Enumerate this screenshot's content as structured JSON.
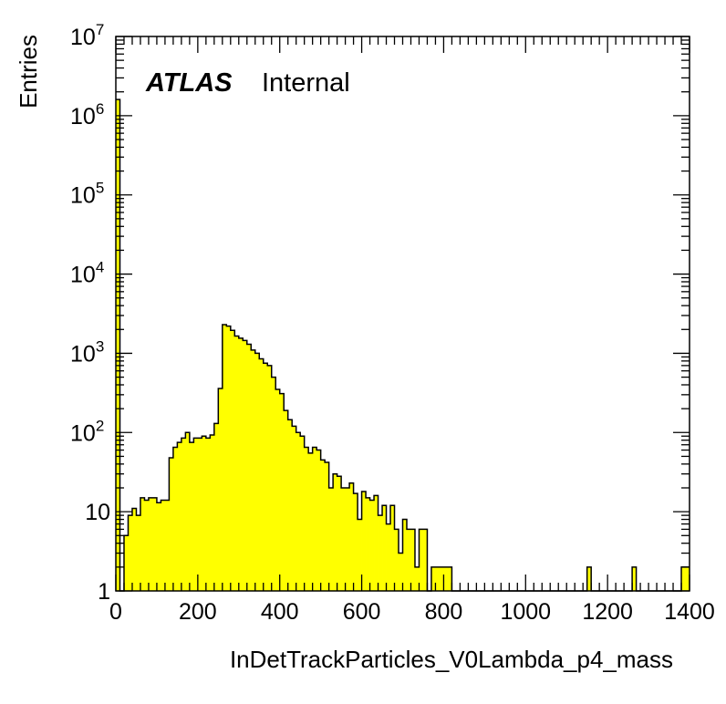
{
  "chart_data": {
    "type": "bar",
    "title": "",
    "xlabel": "InDetTrackParticles_V0Lambda_p4_mass",
    "ylabel": "Entries",
    "annotation": {
      "atlas": "ATLAS",
      "status": "Internal"
    },
    "xlim": [
      0,
      1400
    ],
    "ylim": [
      1,
      10000000
    ],
    "yscale": "log",
    "grid": false,
    "fill_color": "#ffff00",
    "line_color": "#000000",
    "bin_width": 10,
    "x_ticks": [
      "0",
      "200",
      "400",
      "600",
      "800",
      "1000",
      "1200",
      "1400"
    ],
    "x_tick_values": [
      0,
      200,
      400,
      600,
      800,
      1000,
      1200,
      1400
    ],
    "y_ticks": [
      {
        "value": 1,
        "base": "1",
        "exp": ""
      },
      {
        "value": 10,
        "base": "10",
        "exp": ""
      },
      {
        "value": 100,
        "base": "10",
        "exp": "2"
      },
      {
        "value": 1000,
        "base": "10",
        "exp": "3"
      },
      {
        "value": 10000,
        "base": "10",
        "exp": "4"
      },
      {
        "value": 100000,
        "base": "10",
        "exp": "5"
      },
      {
        "value": 1000000,
        "base": "10",
        "exp": "6"
      },
      {
        "value": 10000000,
        "base": "10",
        "exp": "7"
      }
    ],
    "bin_edges_start": 0,
    "values": [
      1600000,
      0,
      5,
      9,
      11,
      9,
      15,
      14,
      15,
      15,
      13,
      14,
      14,
      48,
      65,
      75,
      85,
      100,
      75,
      85,
      85,
      90,
      85,
      93,
      130,
      360,
      2300,
      2200,
      1950,
      1650,
      1550,
      1450,
      1300,
      1100,
      1000,
      850,
      750,
      700,
      500,
      350,
      310,
      190,
      145,
      120,
      100,
      90,
      65,
      55,
      65,
      60,
      45,
      42,
      20,
      30,
      28,
      20,
      20,
      23,
      17,
      8,
      18,
      15,
      14,
      16,
      9,
      12,
      7,
      12,
      6,
      3,
      8,
      6,
      6,
      2,
      6,
      6,
      0,
      2,
      2,
      2,
      2,
      2,
      0,
      0,
      0,
      0,
      0,
      0,
      0,
      0,
      0,
      0,
      0,
      0,
      0,
      0,
      0,
      0,
      0,
      0,
      0,
      0,
      0,
      0,
      0,
      0,
      0,
      0,
      0,
      0,
      0,
      0,
      0,
      0,
      0,
      2,
      0,
      0,
      0,
      0,
      0,
      0,
      0,
      0,
      0,
      0,
      2,
      0,
      0,
      0,
      0,
      0,
      0,
      0,
      0,
      0,
      0,
      0,
      2,
      2
    ]
  }
}
